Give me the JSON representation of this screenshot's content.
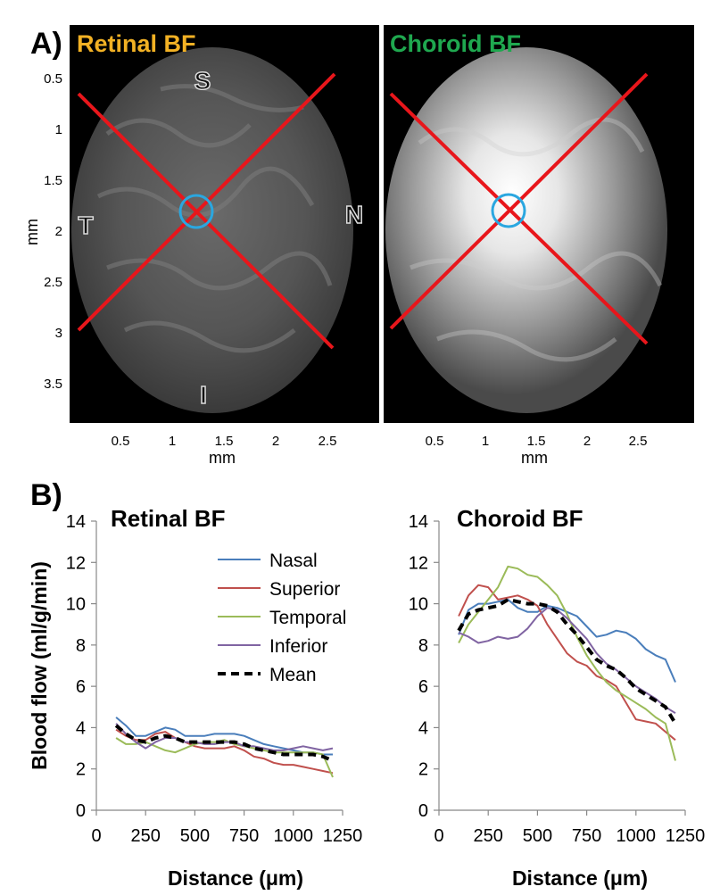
{
  "panel_a": {
    "label": "A)",
    "left_title": "Retinal BF",
    "right_title": "Choroid BF",
    "left_title_color": "#f2b124",
    "right_title_color": "#1fa84f",
    "orientation": {
      "superior": "S",
      "inferior": "I",
      "temporal": "T",
      "nasal": "N"
    },
    "ylabel": "mm",
    "xlabel": "mm",
    "x_ticks": [
      "0.5",
      "1",
      "1.5",
      "2",
      "2.5"
    ],
    "y_ticks": [
      "0.5",
      "1",
      "1.5",
      "2",
      "2.5",
      "3",
      "3.5"
    ],
    "line_color": "#e8161b",
    "circle_color": "#2aa7e0"
  },
  "panel_b": {
    "label": "B)"
  },
  "chart_data": [
    {
      "type": "line",
      "title": "Retinal BF",
      "xlabel": "Distance (μm)",
      "ylabel": "Blood flow (ml/g/min)",
      "xlim": [
        0,
        1250
      ],
      "ylim": [
        0,
        14
      ],
      "x_ticks": [
        0,
        250,
        500,
        750,
        1000,
        1250
      ],
      "y_ticks": [
        0,
        2,
        4,
        6,
        8,
        10,
        12,
        14
      ],
      "legend": "top-right",
      "series": [
        {
          "name": "Nasal",
          "color": "#4a7ebb",
          "style": "solid",
          "x": [
            100,
            150,
            200,
            250,
            300,
            350,
            400,
            450,
            500,
            550,
            600,
            650,
            700,
            750,
            800,
            850,
            900,
            950,
            1000,
            1050,
            1100,
            1150,
            1200
          ],
          "y": [
            4.5,
            4.1,
            3.6,
            3.6,
            3.8,
            4.0,
            3.9,
            3.6,
            3.6,
            3.6,
            3.7,
            3.7,
            3.7,
            3.6,
            3.4,
            3.2,
            3.1,
            3.0,
            2.9,
            2.8,
            2.8,
            2.7,
            2.7
          ]
        },
        {
          "name": "Superior",
          "color": "#c0504d",
          "style": "solid",
          "x": [
            100,
            150,
            200,
            250,
            300,
            350,
            400,
            450,
            500,
            550,
            600,
            650,
            700,
            750,
            800,
            850,
            900,
            950,
            1000,
            1050,
            1100,
            1150,
            1200
          ],
          "y": [
            3.9,
            3.6,
            3.4,
            3.4,
            3.7,
            3.8,
            3.5,
            3.3,
            3.1,
            3.0,
            3.0,
            3.0,
            3.1,
            2.9,
            2.6,
            2.5,
            2.3,
            2.2,
            2.2,
            2.1,
            2.0,
            1.9,
            1.8
          ]
        },
        {
          "name": "Temporal",
          "color": "#9bbb59",
          "style": "solid",
          "x": [
            100,
            150,
            200,
            250,
            300,
            350,
            400,
            450,
            500,
            550,
            600,
            650,
            700,
            750,
            800,
            850,
            900,
            950,
            1000,
            1050,
            1100,
            1150,
            1200
          ],
          "y": [
            3.5,
            3.2,
            3.2,
            3.3,
            3.1,
            2.9,
            2.8,
            3.0,
            3.2,
            3.3,
            3.3,
            3.4,
            3.2,
            3.1,
            3.0,
            2.9,
            2.8,
            2.8,
            2.8,
            2.8,
            2.8,
            2.7,
            1.6
          ]
        },
        {
          "name": "Inferior",
          "color": "#8064a2",
          "style": "solid",
          "x": [
            100,
            150,
            200,
            250,
            300,
            350,
            400,
            450,
            500,
            550,
            600,
            650,
            700,
            750,
            800,
            850,
            900,
            950,
            1000,
            1050,
            1100,
            1150,
            1200
          ],
          "y": [
            4.2,
            3.7,
            3.3,
            3.0,
            3.3,
            3.5,
            3.5,
            3.3,
            3.3,
            3.2,
            3.2,
            3.3,
            3.3,
            3.1,
            3.1,
            3.0,
            2.9,
            2.9,
            3.0,
            3.1,
            3.0,
            2.9,
            3.0
          ]
        },
        {
          "name": "Mean",
          "color": "#000000",
          "style": "dashed",
          "x": [
            100,
            150,
            200,
            250,
            300,
            350,
            400,
            450,
            500,
            550,
            600,
            650,
            700,
            750,
            800,
            850,
            900,
            950,
            1000,
            1050,
            1100,
            1150,
            1200
          ],
          "y": [
            4.1,
            3.7,
            3.4,
            3.3,
            3.5,
            3.6,
            3.5,
            3.3,
            3.3,
            3.3,
            3.3,
            3.3,
            3.3,
            3.2,
            3.0,
            2.9,
            2.8,
            2.7,
            2.7,
            2.7,
            2.7,
            2.6,
            2.4
          ]
        }
      ]
    },
    {
      "type": "line",
      "title": "Choroid BF",
      "xlabel": "Distance (μm)",
      "ylabel": "",
      "xlim": [
        0,
        1250
      ],
      "ylim": [
        0,
        14
      ],
      "x_ticks": [
        0,
        250,
        500,
        750,
        1000,
        1250
      ],
      "y_ticks": [
        0,
        2,
        4,
        6,
        8,
        10,
        12,
        14
      ],
      "series": [
        {
          "name": "Nasal",
          "color": "#4a7ebb",
          "style": "solid",
          "x": [
            100,
            150,
            200,
            250,
            300,
            350,
            400,
            450,
            500,
            550,
            600,
            650,
            700,
            750,
            800,
            850,
            900,
            950,
            1000,
            1050,
            1100,
            1150,
            1200
          ],
          "y": [
            8.5,
            9.7,
            10.0,
            10.0,
            10.1,
            10.2,
            9.8,
            9.6,
            9.6,
            9.9,
            9.8,
            9.6,
            9.4,
            8.9,
            8.4,
            8.5,
            8.7,
            8.6,
            8.3,
            7.8,
            7.5,
            7.3,
            6.2
          ]
        },
        {
          "name": "Superior",
          "color": "#c0504d",
          "style": "solid",
          "x": [
            100,
            150,
            200,
            250,
            300,
            350,
            400,
            450,
            500,
            550,
            600,
            650,
            700,
            750,
            800,
            850,
            900,
            950,
            1000,
            1050,
            1100,
            1150,
            1200
          ],
          "y": [
            9.4,
            10.4,
            10.9,
            10.8,
            10.2,
            10.3,
            10.4,
            10.2,
            9.9,
            9.0,
            8.3,
            7.6,
            7.2,
            7.0,
            6.5,
            6.3,
            6.0,
            5.2,
            4.4,
            4.3,
            4.2,
            3.8,
            3.4
          ]
        },
        {
          "name": "Temporal",
          "color": "#9bbb59",
          "style": "solid",
          "x": [
            100,
            150,
            200,
            250,
            300,
            350,
            400,
            450,
            500,
            550,
            600,
            650,
            700,
            750,
            800,
            850,
            900,
            950,
            1000,
            1050,
            1100,
            1150,
            1200
          ],
          "y": [
            8.1,
            9.0,
            9.6,
            10.2,
            10.8,
            11.8,
            11.7,
            11.4,
            11.3,
            10.9,
            10.4,
            9.5,
            8.4,
            7.5,
            6.8,
            6.2,
            5.8,
            5.5,
            5.2,
            4.9,
            4.5,
            4.2,
            2.4
          ]
        },
        {
          "name": "Inferior",
          "color": "#8064a2",
          "style": "solid",
          "x": [
            100,
            150,
            200,
            250,
            300,
            350,
            400,
            450,
            500,
            550,
            600,
            650,
            700,
            750,
            800,
            850,
            900,
            950,
            1000,
            1050,
            1100,
            1150,
            1200
          ],
          "y": [
            8.6,
            8.4,
            8.1,
            8.2,
            8.4,
            8.3,
            8.4,
            8.8,
            9.4,
            9.8,
            9.7,
            9.3,
            8.8,
            8.3,
            7.6,
            7.1,
            6.8,
            6.4,
            6.0,
            5.7,
            5.4,
            5.0,
            4.7
          ]
        },
        {
          "name": "Mean",
          "color": "#000000",
          "style": "dashed",
          "x": [
            100,
            150,
            200,
            250,
            300,
            350,
            400,
            450,
            500,
            550,
            600,
            650,
            700,
            750,
            800,
            850,
            900,
            950,
            1000,
            1050,
            1100,
            1150,
            1200
          ],
          "y": [
            8.7,
            9.5,
            9.7,
            9.8,
            9.9,
            10.2,
            10.1,
            10.0,
            10.0,
            9.9,
            9.6,
            9.0,
            8.5,
            7.9,
            7.3,
            7.0,
            6.8,
            6.4,
            5.9,
            5.6,
            5.3,
            5.0,
            4.2
          ]
        }
      ]
    }
  ]
}
